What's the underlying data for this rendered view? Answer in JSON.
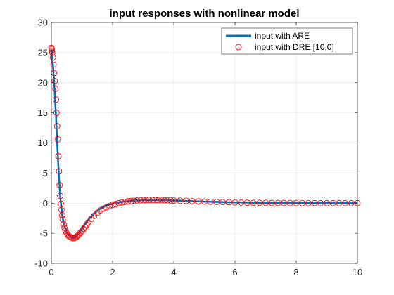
{
  "chart_data": {
    "type": "line",
    "title": "input responses with nonlinear model",
    "xlabel": "",
    "ylabel": "",
    "xlim": [
      0,
      10
    ],
    "ylim": [
      -10,
      30
    ],
    "xticks": [
      0,
      2,
      4,
      6,
      8,
      10
    ],
    "yticks": [
      -10,
      -5,
      0,
      5,
      10,
      15,
      20,
      25,
      30
    ],
    "grid": true,
    "legend_position": "top-right",
    "series": [
      {
        "name": "input with ARE",
        "style": "line",
        "color": "#0072BD",
        "x": [
          0,
          0.05,
          0.1,
          0.15,
          0.2,
          0.25,
          0.3,
          0.35,
          0.4,
          0.5,
          0.6,
          0.7,
          0.75,
          0.8,
          0.9,
          1.0,
          1.2,
          1.4,
          1.6,
          1.8,
          2.0,
          2.3,
          2.6,
          3.0,
          3.5,
          4.0,
          4.5,
          5.0,
          6.0,
          7.0,
          8.0,
          9.0,
          10.0
        ],
        "y": [
          25.5,
          23.0,
          19.5,
          14.5,
          9.0,
          4.0,
          0.5,
          -1.8,
          -3.3,
          -4.8,
          -5.5,
          -5.8,
          -5.8,
          -5.6,
          -5.0,
          -4.2,
          -2.8,
          -1.7,
          -0.9,
          -0.4,
          -0.1,
          0.2,
          0.4,
          0.5,
          0.5,
          0.45,
          0.35,
          0.25,
          0.12,
          0.05,
          0.02,
          0.01,
          0.0
        ]
      },
      {
        "name": "input with DRE [10,0]",
        "style": "markers",
        "marker": "circle",
        "color": "#FF0000",
        "x": [
          0,
          0.01,
          0.02,
          0.03,
          0.05,
          0.07,
          0.09,
          0.11,
          0.13,
          0.15,
          0.17,
          0.19,
          0.21,
          0.23,
          0.25,
          0.27,
          0.29,
          0.31,
          0.33,
          0.35,
          0.37,
          0.4,
          0.43,
          0.46,
          0.5,
          0.54,
          0.58,
          0.62,
          0.66,
          0.7,
          0.74,
          0.78,
          0.82,
          0.86,
          0.9,
          0.95,
          1.0,
          1.05,
          1.1,
          1.15,
          1.2,
          1.3,
          1.4,
          1.5,
          1.6,
          1.7,
          1.8,
          1.9,
          2.0,
          2.1,
          2.2,
          2.3,
          2.4,
          2.5,
          2.6,
          2.7,
          2.8,
          2.9,
          3.0,
          3.1,
          3.2,
          3.3,
          3.4,
          3.5,
          3.6,
          3.7,
          3.8,
          3.9,
          4.0,
          4.2,
          4.4,
          4.6,
          4.8,
          5.0,
          5.2,
          5.4,
          5.6,
          5.8,
          6.0,
          6.2,
          6.4,
          6.6,
          6.8,
          7.0,
          7.2,
          7.4,
          7.6,
          7.8,
          8.0,
          8.2,
          8.4,
          8.6,
          8.8,
          9.0,
          9.2,
          9.4,
          9.6,
          9.8,
          10.0
        ],
        "y": [
          25.8,
          25.6,
          25.3,
          25.0,
          24.2,
          23.0,
          21.6,
          20.3,
          19.0,
          17.2,
          15.0,
          12.8,
          10.6,
          7.8,
          5.3,
          3.0,
          1.2,
          -0.1,
          -1.1,
          -2.0,
          -2.7,
          -3.5,
          -4.1,
          -4.6,
          -5.0,
          -5.3,
          -5.5,
          -5.6,
          -5.7,
          -5.8,
          -5.8,
          -5.7,
          -5.6,
          -5.4,
          -5.2,
          -4.9,
          -4.6,
          -4.3,
          -4.0,
          -3.6,
          -3.2,
          -2.6,
          -2.1,
          -1.6,
          -1.2,
          -0.9,
          -0.7,
          -0.5,
          -0.3,
          -0.15,
          0.0,
          0.1,
          0.2,
          0.3,
          0.35,
          0.4,
          0.45,
          0.48,
          0.5,
          0.5,
          0.52,
          0.52,
          0.52,
          0.5,
          0.5,
          0.48,
          0.47,
          0.45,
          0.43,
          0.4,
          0.37,
          0.33,
          0.3,
          0.26,
          0.23,
          0.2,
          0.17,
          0.15,
          0.12,
          0.1,
          0.08,
          0.07,
          0.06,
          0.05,
          0.04,
          0.03,
          0.03,
          0.02,
          0.02,
          0.01,
          0.01,
          0.01,
          0.0,
          0.0,
          0.0,
          0.0,
          0.0,
          0.0,
          0.0
        ]
      }
    ]
  }
}
